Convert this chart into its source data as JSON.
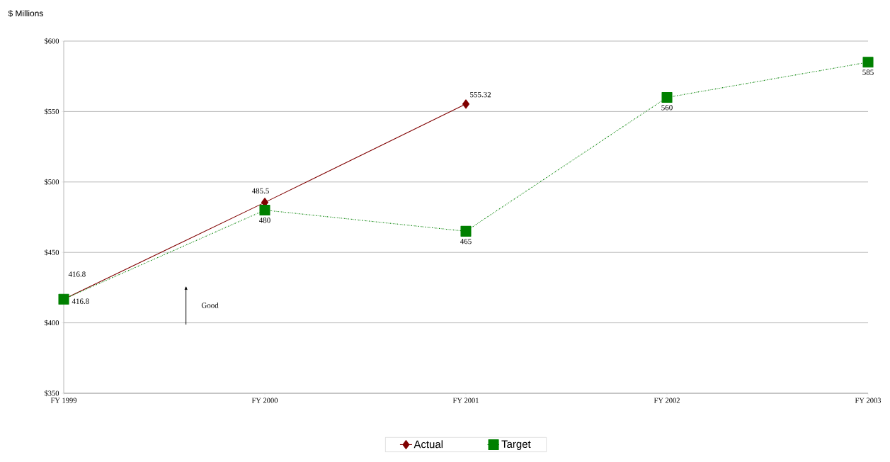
{
  "chart_data": {
    "type": "line",
    "ylabel": "$ Millions",
    "categories": [
      "FY 1999",
      "FY 2000",
      "FY 2001",
      "FY 2002",
      "FY 2003"
    ],
    "series": [
      {
        "name": "Actual",
        "color": "#800000",
        "marker": "diamond",
        "line_style": "solid",
        "values": [
          416.8,
          485.5,
          555.32,
          null,
          null
        ]
      },
      {
        "name": "Target",
        "color": "#008000",
        "marker": "square",
        "line_style": "dotted",
        "values": [
          416.8,
          480,
          465,
          560,
          585
        ]
      }
    ],
    "ylim": [
      350,
      600
    ],
    "yticks": [
      {
        "value": 350,
        "label": "$350"
      },
      {
        "value": 400,
        "label": "$400"
      },
      {
        "value": 450,
        "label": "$450"
      },
      {
        "value": 500,
        "label": "$500"
      },
      {
        "value": 550,
        "label": "$550"
      },
      {
        "value": 600,
        "label": "$600"
      }
    ],
    "grid": "y",
    "legend": "bottom",
    "data_labels": true,
    "annotations": [
      "Good"
    ]
  }
}
